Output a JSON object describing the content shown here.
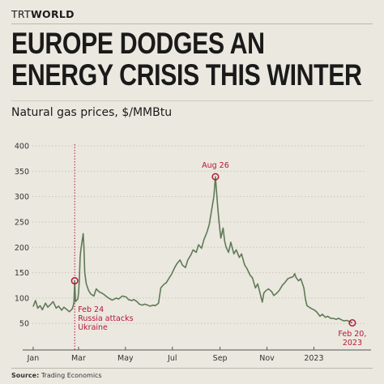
{
  "brand": {
    "logo_text": "TRTWORLD",
    "logo_prefix": "TRT",
    "logo_suffix": "WORLD"
  },
  "headline": {
    "line1": "EUROPE DODGES AN",
    "line2": "ENERGY CRISIS THIS WINTER"
  },
  "subtitle": "Natural gas prices, $/MMBtu",
  "source": {
    "label": "Source:",
    "text": "Trading Economics"
  },
  "colors": {
    "background": "#ebe8df",
    "line": "#5f7a56",
    "accent": "#b5173a",
    "grid": "#c9c5b8",
    "text": "#1a1a1a"
  },
  "chart_data": {
    "type": "line",
    "xlabel": "",
    "ylabel": "",
    "x_tick_labels": [
      "Jan",
      "Mar",
      "May",
      "Jul",
      "Sep",
      "Nov",
      "2023"
    ],
    "x_tick_dates": [
      "2022-01-01",
      "2022-03-01",
      "2022-05-01",
      "2022-07-01",
      "2022-09-01",
      "2022-11-01",
      "2023-01-01"
    ],
    "y_ticks": [
      50,
      100,
      150,
      200,
      250,
      300,
      350,
      400
    ],
    "ylim": [
      20,
      400
    ],
    "xlim": [
      "2021-12-31",
      "2023-03-10"
    ],
    "grid": "horizontal dotted",
    "series": [
      {
        "points": [
          [
            "2022-01-01",
            83
          ],
          [
            "2022-01-04",
            95
          ],
          [
            "2022-01-07",
            80
          ],
          [
            "2022-01-10",
            85
          ],
          [
            "2022-01-13",
            77
          ],
          [
            "2022-01-17",
            90
          ],
          [
            "2022-01-20",
            82
          ],
          [
            "2022-01-24",
            88
          ],
          [
            "2022-01-27",
            93
          ],
          [
            "2022-01-31",
            80
          ],
          [
            "2022-02-03",
            84
          ],
          [
            "2022-02-07",
            76
          ],
          [
            "2022-02-10",
            82
          ],
          [
            "2022-02-14",
            77
          ],
          [
            "2022-02-17",
            73
          ],
          [
            "2022-02-21",
            79
          ],
          [
            "2022-02-22",
            84
          ],
          [
            "2022-02-23",
            92
          ],
          [
            "2022-02-24",
            134
          ],
          [
            "2022-02-25",
            93
          ],
          [
            "2022-02-28",
            98
          ],
          [
            "2022-03-01",
            110
          ],
          [
            "2022-03-02",
            135
          ],
          [
            "2022-03-03",
            180
          ],
          [
            "2022-03-04",
            195
          ],
          [
            "2022-03-07",
            227
          ],
          [
            "2022-03-08",
            200
          ],
          [
            "2022-03-09",
            150
          ],
          [
            "2022-03-11",
            128
          ],
          [
            "2022-03-14",
            115
          ],
          [
            "2022-03-17",
            108
          ],
          [
            "2022-03-21",
            104
          ],
          [
            "2022-03-24",
            118
          ],
          [
            "2022-03-28",
            112
          ],
          [
            "2022-03-31",
            110
          ],
          [
            "2022-04-04",
            106
          ],
          [
            "2022-04-07",
            102
          ],
          [
            "2022-04-11",
            98
          ],
          [
            "2022-04-14",
            96
          ],
          [
            "2022-04-19",
            100
          ],
          [
            "2022-04-22",
            98
          ],
          [
            "2022-04-27",
            104
          ],
          [
            "2022-05-02",
            102
          ],
          [
            "2022-05-05",
            97
          ],
          [
            "2022-05-09",
            95
          ],
          [
            "2022-05-12",
            97
          ],
          [
            "2022-05-16",
            93
          ],
          [
            "2022-05-19",
            88
          ],
          [
            "2022-05-23",
            86
          ],
          [
            "2022-05-26",
            88
          ],
          [
            "2022-05-30",
            86
          ],
          [
            "2022-06-02",
            84
          ],
          [
            "2022-06-06",
            86
          ],
          [
            "2022-06-09",
            85
          ],
          [
            "2022-06-13",
            90
          ],
          [
            "2022-06-14",
            100
          ],
          [
            "2022-06-16",
            120
          ],
          [
            "2022-06-20",
            127
          ],
          [
            "2022-06-23",
            130
          ],
          [
            "2022-06-27",
            140
          ],
          [
            "2022-06-30",
            147
          ],
          [
            "2022-07-04",
            160
          ],
          [
            "2022-07-07",
            168
          ],
          [
            "2022-07-11",
            175
          ],
          [
            "2022-07-14",
            165
          ],
          [
            "2022-07-18",
            160
          ],
          [
            "2022-07-21",
            175
          ],
          [
            "2022-07-25",
            185
          ],
          [
            "2022-07-28",
            195
          ],
          [
            "2022-08-01",
            190
          ],
          [
            "2022-08-04",
            205
          ],
          [
            "2022-08-08",
            198
          ],
          [
            "2022-08-11",
            215
          ],
          [
            "2022-08-15",
            230
          ],
          [
            "2022-08-18",
            245
          ],
          [
            "2022-08-22",
            282
          ],
          [
            "2022-08-24",
            300
          ],
          [
            "2022-08-26",
            339
          ],
          [
            "2022-08-29",
            278
          ],
          [
            "2022-08-31",
            245
          ],
          [
            "2022-09-02",
            218
          ],
          [
            "2022-09-05",
            238
          ],
          [
            "2022-09-07",
            212
          ],
          [
            "2022-09-09",
            200
          ],
          [
            "2022-09-12",
            190
          ],
          [
            "2022-09-15",
            210
          ],
          [
            "2022-09-19",
            187
          ],
          [
            "2022-09-22",
            195
          ],
          [
            "2022-09-26",
            180
          ],
          [
            "2022-09-29",
            187
          ],
          [
            "2022-10-03",
            165
          ],
          [
            "2022-10-06",
            158
          ],
          [
            "2022-10-10",
            145
          ],
          [
            "2022-10-13",
            140
          ],
          [
            "2022-10-17",
            120
          ],
          [
            "2022-10-20",
            128
          ],
          [
            "2022-10-24",
            104
          ],
          [
            "2022-10-26",
            92
          ],
          [
            "2022-10-28",
            110
          ],
          [
            "2022-10-31",
            115
          ],
          [
            "2022-11-03",
            118
          ],
          [
            "2022-11-07",
            113
          ],
          [
            "2022-11-10",
            105
          ],
          [
            "2022-11-14",
            110
          ],
          [
            "2022-11-17",
            115
          ],
          [
            "2022-11-21",
            125
          ],
          [
            "2022-11-24",
            130
          ],
          [
            "2022-11-28",
            138
          ],
          [
            "2022-12-01",
            140
          ],
          [
            "2022-12-05",
            142
          ],
          [
            "2022-12-07",
            148
          ],
          [
            "2022-12-09",
            140
          ],
          [
            "2022-12-12",
            134
          ],
          [
            "2022-12-15",
            138
          ],
          [
            "2022-12-19",
            120
          ],
          [
            "2022-12-21",
            98
          ],
          [
            "2022-12-23",
            85
          ],
          [
            "2022-12-28",
            80
          ],
          [
            "2023-01-02",
            76
          ],
          [
            "2023-01-05",
            72
          ],
          [
            "2023-01-09",
            64
          ],
          [
            "2023-01-12",
            68
          ],
          [
            "2023-01-16",
            62
          ],
          [
            "2023-01-19",
            64
          ],
          [
            "2023-01-23",
            60
          ],
          [
            "2023-01-26",
            60
          ],
          [
            "2023-01-30",
            58
          ],
          [
            "2023-02-02",
            60
          ],
          [
            "2023-02-06",
            57
          ],
          [
            "2023-02-09",
            55
          ],
          [
            "2023-02-13",
            56
          ],
          [
            "2023-02-16",
            54
          ],
          [
            "2023-02-20",
            51
          ]
        ]
      }
    ],
    "annotations": [
      {
        "id": "feb24",
        "date": "2022-02-24",
        "value": 134,
        "label_lines": [
          "Feb 24",
          "Russia attacks",
          "Ukraine"
        ],
        "vertical_line": true
      },
      {
        "id": "aug26",
        "date": "2022-08-26",
        "value": 339,
        "label_lines": [
          "Aug 26"
        ]
      },
      {
        "id": "feb20",
        "date": "2023-02-20",
        "value": 51,
        "label_lines": [
          "Feb 20,",
          "2023"
        ]
      }
    ]
  }
}
